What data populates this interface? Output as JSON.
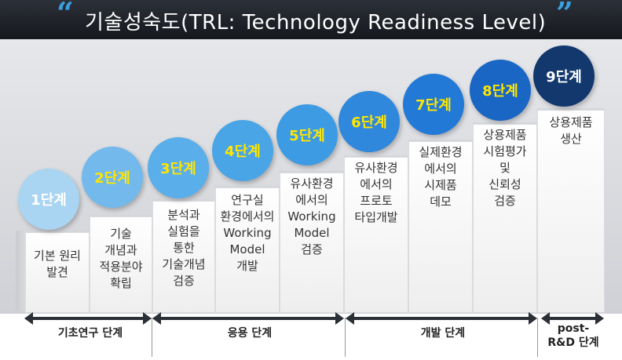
{
  "header": {
    "open_quote": "“",
    "title": "기술성숙도(TRL: Technology Readiness Level)",
    "close_quote": "”"
  },
  "stages": [
    {
      "badge": "1단계",
      "desc": "기본 원리\n발견"
    },
    {
      "badge": "2단계",
      "desc": "기술\n개념과\n적용분야\n확립"
    },
    {
      "badge": "3단계",
      "desc": "분석과\n실험을\n통한\n기술개념\n검증"
    },
    {
      "badge": "4단계",
      "desc": "연구실\n환경에서의\nWorking\nModel\n개발"
    },
    {
      "badge": "5단계",
      "desc": "유사환경\n에서의\nWorking\nModel\n검증"
    },
    {
      "badge": "6단계",
      "desc": "유사환경\n에서의\n프로토\n타입개발"
    },
    {
      "badge": "7단계",
      "desc": "실제환경\n에서의\n시제품\n데모"
    },
    {
      "badge": "8단계",
      "desc": "상용제품\n시험평가\n및\n신뢰성\n검증"
    },
    {
      "badge": "9단계",
      "desc": "상용제품\n생산"
    }
  ],
  "phases": [
    {
      "label": "기초연구 단계"
    },
    {
      "label": "응용 단계"
    },
    {
      "label": "개발 단계"
    },
    {
      "label": "post-\nR&D 단계"
    }
  ],
  "colors": {
    "title_bar": "#1d2026",
    "quote": "#3aa0e0",
    "badge_text_light": "#ffffff",
    "badge_text_yellow": "#ffe600",
    "badge_1": "#a9d4f2",
    "badge_2": "#73b9ec",
    "badge_3": "#5aaee9",
    "badge_4": "#4aa5e6",
    "badge_5": "#3d9be4",
    "badge_6": "#2f88dc",
    "badge_7": "#227ad6",
    "badge_8": "#1a66c4",
    "badge_9": "#12386e"
  }
}
